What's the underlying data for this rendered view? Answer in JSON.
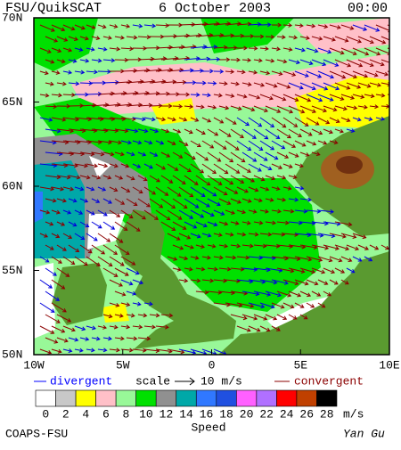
{
  "header": {
    "title": "FSU/QuikSCAT",
    "date": "6 October 2003",
    "time": "00:00"
  },
  "axes": {
    "lat_labels": [
      "70N",
      "65N",
      "60N",
      "55N",
      "50N"
    ],
    "lon_labels": [
      "10W",
      "5W",
      "0",
      "5E",
      "10E"
    ]
  },
  "legend": {
    "divergent": "divergent",
    "scale": "scale",
    "scale_value": "10 m/s",
    "convergent": "convergent",
    "speed_labels": [
      0,
      2,
      4,
      6,
      8,
      10,
      12,
      14,
      16,
      18,
      20,
      22,
      24,
      26,
      28
    ],
    "colors": [
      "#ffffff",
      "#c8c8c8",
      "#ffff00",
      "#ffc0c8",
      "#98f898",
      "#00e000",
      "#909090",
      "#00a8a8",
      "#3078ff",
      "#2050e0",
      "#ff60ff",
      "#b070ff",
      "#ff0000",
      "#c04000",
      "#000000"
    ],
    "unit": "m/s",
    "title": "Speed"
  },
  "footer": {
    "left": "COAPS-FSU",
    "right": "Yan Gu"
  }
}
